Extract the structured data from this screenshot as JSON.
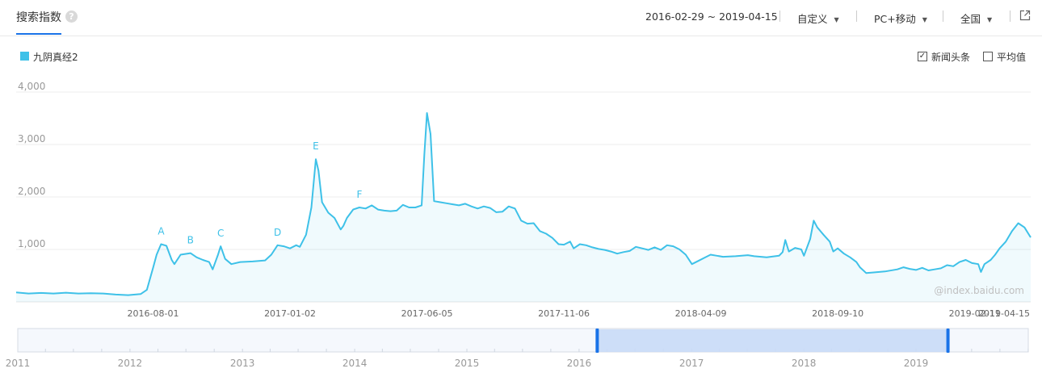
{
  "header": {
    "tab_title": "搜索指数",
    "help_icon": "question-circle-icon",
    "date_range": "2016-02-29 ~ 2019-04-15",
    "custom_label": "自定义",
    "device_label": "PC+移动",
    "region_label": "全国",
    "export_icon": "external-link-icon"
  },
  "legend": {
    "series_name": "九阴真经2",
    "series_color": "#3ec1e8",
    "news_label": "新闻头条",
    "news_checked": true,
    "avg_label": "平均值",
    "avg_checked": false
  },
  "watermark": "@index.baidu.com",
  "chart_data": {
    "type": "area",
    "yticks": [
      "4,000",
      "3,000",
      "2,000",
      "1,000"
    ],
    "ylim": [
      0,
      4000
    ],
    "xlim": [
      "2016-02-29",
      "2019-04-15"
    ],
    "xticks": [
      "2016-08-01",
      "2017-01-02",
      "2017-06-05",
      "2017-11-06",
      "2018-04-09",
      "2018-09-10",
      "2019-02-11",
      "2019-04-15"
    ],
    "grid": true,
    "series": [
      {
        "name": "九阴真经2",
        "color": "#3ec1e8",
        "points": [
          [
            "2016-02-29",
            180
          ],
          [
            "2016-03-14",
            160
          ],
          [
            "2016-03-28",
            170
          ],
          [
            "2016-04-11",
            160
          ],
          [
            "2016-04-25",
            175
          ],
          [
            "2016-05-09",
            160
          ],
          [
            "2016-05-23",
            165
          ],
          [
            "2016-06-06",
            160
          ],
          [
            "2016-06-20",
            140
          ],
          [
            "2016-07-04",
            130
          ],
          [
            "2016-07-18",
            150
          ],
          [
            "2016-07-25",
            230
          ],
          [
            "2016-08-01",
            650
          ],
          [
            "2016-08-05",
            900
          ],
          [
            "2016-08-10",
            1100
          ],
          [
            "2016-08-16",
            1070
          ],
          [
            "2016-08-22",
            800
          ],
          [
            "2016-08-25",
            720
          ],
          [
            "2016-09-01",
            900
          ],
          [
            "2016-09-12",
            930
          ],
          [
            "2016-09-19",
            850
          ],
          [
            "2016-09-26",
            800
          ],
          [
            "2016-10-03",
            760
          ],
          [
            "2016-10-07",
            620
          ],
          [
            "2016-10-13",
            900
          ],
          [
            "2016-10-16",
            1060
          ],
          [
            "2016-10-21",
            820
          ],
          [
            "2016-10-28",
            720
          ],
          [
            "2016-11-07",
            760
          ],
          [
            "2016-11-21",
            770
          ],
          [
            "2016-12-05",
            790
          ],
          [
            "2016-12-12",
            900
          ],
          [
            "2016-12-19",
            1080
          ],
          [
            "2016-12-26",
            1060
          ],
          [
            "2017-01-02",
            1020
          ],
          [
            "2017-01-09",
            1080
          ],
          [
            "2017-01-13",
            1050
          ],
          [
            "2017-01-20",
            1280
          ],
          [
            "2017-01-26",
            1800
          ],
          [
            "2017-01-31",
            2720
          ],
          [
            "2017-02-03",
            2500
          ],
          [
            "2017-02-07",
            1900
          ],
          [
            "2017-02-14",
            1700
          ],
          [
            "2017-02-21",
            1600
          ],
          [
            "2017-02-28",
            1380
          ],
          [
            "2017-03-03",
            1450
          ],
          [
            "2017-03-07",
            1600
          ],
          [
            "2017-03-14",
            1760
          ],
          [
            "2017-03-21",
            1800
          ],
          [
            "2017-03-28",
            1780
          ],
          [
            "2017-04-04",
            1840
          ],
          [
            "2017-04-11",
            1760
          ],
          [
            "2017-04-18",
            1740
          ],
          [
            "2017-04-25",
            1730
          ],
          [
            "2017-05-02",
            1740
          ],
          [
            "2017-05-09",
            1850
          ],
          [
            "2017-05-16",
            1800
          ],
          [
            "2017-05-23",
            1800
          ],
          [
            "2017-05-30",
            1840
          ],
          [
            "2017-06-02",
            2800
          ],
          [
            "2017-06-05",
            3600
          ],
          [
            "2017-06-09",
            3200
          ],
          [
            "2017-06-13",
            1920
          ],
          [
            "2017-06-20",
            1900
          ],
          [
            "2017-06-27",
            1880
          ],
          [
            "2017-07-04",
            1860
          ],
          [
            "2017-07-11",
            1840
          ],
          [
            "2017-07-18",
            1870
          ],
          [
            "2017-07-25",
            1820
          ],
          [
            "2017-08-01",
            1780
          ],
          [
            "2017-08-08",
            1820
          ],
          [
            "2017-08-15",
            1790
          ],
          [
            "2017-08-22",
            1710
          ],
          [
            "2017-08-29",
            1720
          ],
          [
            "2017-09-05",
            1820
          ],
          [
            "2017-09-12",
            1780
          ],
          [
            "2017-09-19",
            1550
          ],
          [
            "2017-09-26",
            1490
          ],
          [
            "2017-10-03",
            1500
          ],
          [
            "2017-10-10",
            1350
          ],
          [
            "2017-10-17",
            1300
          ],
          [
            "2017-10-24",
            1220
          ],
          [
            "2017-10-31",
            1100
          ],
          [
            "2017-11-06",
            1090
          ],
          [
            "2017-11-13",
            1150
          ],
          [
            "2017-11-17",
            1020
          ],
          [
            "2017-11-24",
            1100
          ],
          [
            "2017-12-01",
            1080
          ],
          [
            "2017-12-08",
            1040
          ],
          [
            "2017-12-15",
            1010
          ],
          [
            "2017-12-22",
            990
          ],
          [
            "2017-12-29",
            960
          ],
          [
            "2018-01-05",
            920
          ],
          [
            "2018-01-12",
            950
          ],
          [
            "2018-01-19",
            970
          ],
          [
            "2018-01-26",
            1050
          ],
          [
            "2018-02-02",
            1020
          ],
          [
            "2018-02-09",
            990
          ],
          [
            "2018-02-16",
            1040
          ],
          [
            "2018-02-23",
            990
          ],
          [
            "2018-03-02",
            1080
          ],
          [
            "2018-03-09",
            1060
          ],
          [
            "2018-03-16",
            1000
          ],
          [
            "2018-03-23",
            900
          ],
          [
            "2018-03-30",
            720
          ],
          [
            "2018-04-06",
            780
          ],
          [
            "2018-04-13",
            840
          ],
          [
            "2018-04-20",
            900
          ],
          [
            "2018-04-27",
            880
          ],
          [
            "2018-05-04",
            860
          ],
          [
            "2018-05-18",
            870
          ],
          [
            "2018-06-01",
            890
          ],
          [
            "2018-06-08",
            870
          ],
          [
            "2018-06-22",
            850
          ],
          [
            "2018-07-06",
            880
          ],
          [
            "2018-07-10",
            950
          ],
          [
            "2018-07-13",
            1180
          ],
          [
            "2018-07-17",
            960
          ],
          [
            "2018-07-24",
            1030
          ],
          [
            "2018-07-31",
            1000
          ],
          [
            "2018-08-03",
            880
          ],
          [
            "2018-08-10",
            1200
          ],
          [
            "2018-08-14",
            1550
          ],
          [
            "2018-08-18",
            1420
          ],
          [
            "2018-08-25",
            1280
          ],
          [
            "2018-09-01",
            1150
          ],
          [
            "2018-09-05",
            960
          ],
          [
            "2018-09-10",
            1020
          ],
          [
            "2018-09-17",
            920
          ],
          [
            "2018-09-24",
            850
          ],
          [
            "2018-10-01",
            760
          ],
          [
            "2018-10-05",
            660
          ],
          [
            "2018-10-12",
            550
          ],
          [
            "2018-10-19",
            560
          ],
          [
            "2018-11-02",
            580
          ],
          [
            "2018-11-16",
            620
          ],
          [
            "2018-11-23",
            660
          ],
          [
            "2018-11-30",
            630
          ],
          [
            "2018-12-07",
            610
          ],
          [
            "2018-12-14",
            650
          ],
          [
            "2018-12-21",
            600
          ],
          [
            "2018-12-28",
            620
          ],
          [
            "2019-01-04",
            640
          ],
          [
            "2019-01-11",
            700
          ],
          [
            "2019-01-18",
            680
          ],
          [
            "2019-01-25",
            760
          ],
          [
            "2019-02-01",
            800
          ],
          [
            "2019-02-08",
            740
          ],
          [
            "2019-02-15",
            720
          ],
          [
            "2019-02-18",
            570
          ],
          [
            "2019-02-22",
            720
          ],
          [
            "2019-03-01",
            800
          ],
          [
            "2019-03-06",
            900
          ],
          [
            "2019-03-11",
            1020
          ],
          [
            "2019-03-18",
            1150
          ],
          [
            "2019-03-25",
            1350
          ],
          [
            "2019-04-01",
            1500
          ],
          [
            "2019-04-08",
            1420
          ],
          [
            "2019-04-15",
            1230
          ]
        ]
      }
    ],
    "annotations": [
      {
        "label": "A",
        "x": "2016-08-10",
        "y": 1100
      },
      {
        "label": "B",
        "x": "2016-09-12",
        "y": 930
      },
      {
        "label": "C",
        "x": "2016-10-16",
        "y": 1060
      },
      {
        "label": "D",
        "x": "2016-12-19",
        "y": 1080
      },
      {
        "label": "E",
        "x": "2017-01-31",
        "y": 2720
      },
      {
        "label": "F",
        "x": "2017-03-21",
        "y": 1800
      }
    ],
    "navigator": {
      "year_labels": [
        "2011",
        "2012",
        "2013",
        "2014",
        "2015",
        "2016",
        "2017",
        "2018",
        "2019"
      ],
      "selection": [
        "2016-02-29",
        "2019-04-15"
      ]
    }
  }
}
